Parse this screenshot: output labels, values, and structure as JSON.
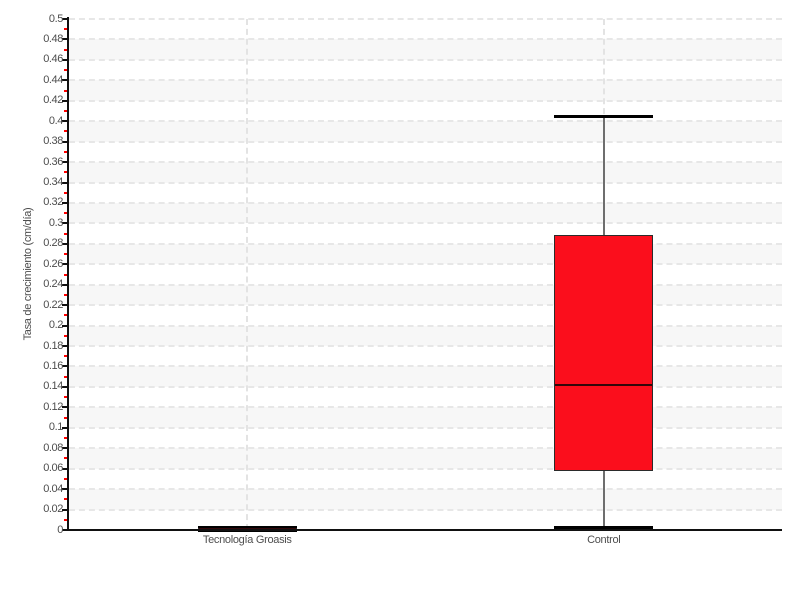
{
  "chart_data": {
    "type": "box",
    "title": "",
    "xlabel": "",
    "ylabel": "Tasa de crecimiento (cm/día)",
    "categories": [
      "Tecnología Groasis",
      "Control"
    ],
    "series": [
      {
        "name": "Tecnología Groasis",
        "min": 0.0,
        "q1": 0.0005,
        "median": 0.001,
        "q3": 0.0015,
        "max": 0.002
      },
      {
        "name": "Control",
        "min": 0.002,
        "q1": 0.058,
        "median": 0.142,
        "q3": 0.289,
        "max": 0.405
      }
    ],
    "y_axis": {
      "min": 0,
      "max": 0.5,
      "major_step": 0.02,
      "minor_step": 0.01,
      "tick_labels": [
        "0",
        "0.02",
        "0.04",
        "0.06",
        "0.08",
        "0.1",
        "0.12",
        "0.14",
        "0.16",
        "0.18",
        "0.2",
        "0.22",
        "0.24",
        "0.26",
        "0.28",
        "0.3",
        "0.32",
        "0.34",
        "0.36",
        "0.38",
        "0.4",
        "0.42",
        "0.44",
        "0.46",
        "0.48",
        "0.5"
      ]
    },
    "grid": {
      "horizontal": "dashed",
      "vertical_at_categories": "dashed",
      "alternating_bands": true
    },
    "legend": null,
    "colors": {
      "box_fill": "#fb0e1c",
      "box_border": "#2b2b2b",
      "median": "#33070a",
      "whisker": "#6e6e6e",
      "cap": "#000000",
      "grid_line": "#e7e7e7",
      "band_alt": "#f7f7f7",
      "band_main": "#ffffff",
      "axis": "#111111",
      "tick_label": "#4d4d4d",
      "major_tick": "#111111",
      "minor_tick": "#ff0000"
    }
  }
}
